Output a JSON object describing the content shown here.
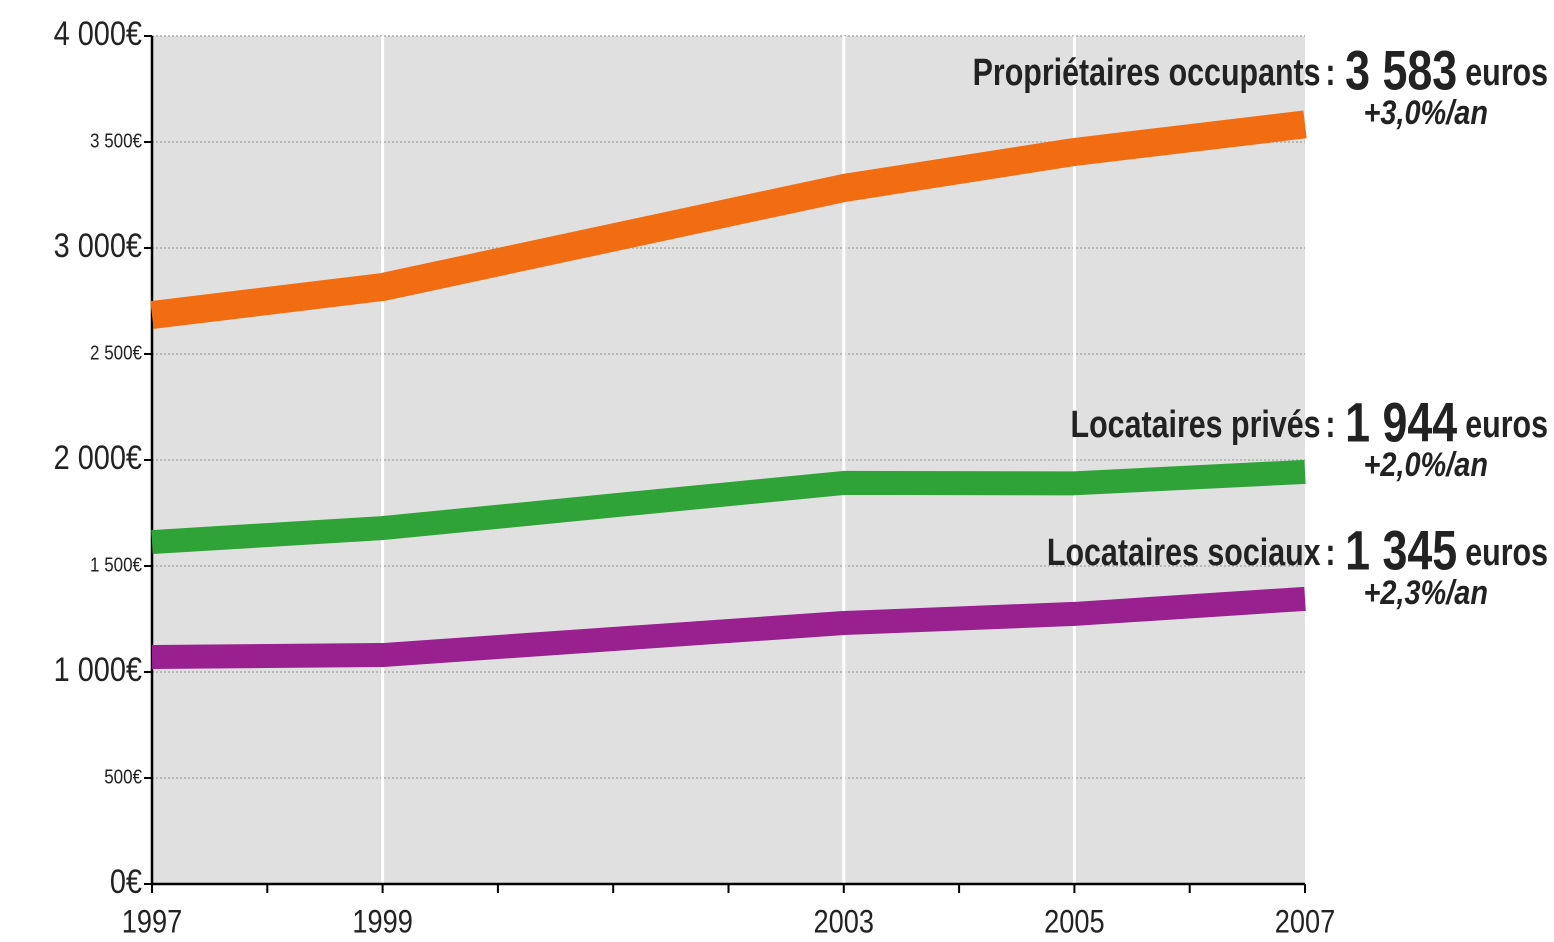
{
  "chart_data": {
    "type": "line",
    "x": [
      1997,
      1999,
      2003,
      2005,
      2007
    ],
    "xlim": [
      1997,
      2007
    ],
    "xticks": [
      1997,
      1999,
      2003,
      2005,
      2007
    ],
    "xminor_ticks": [
      1998,
      2000,
      2001,
      2002,
      2004,
      2006
    ],
    "ylim": [
      0,
      4000
    ],
    "yticks": [
      {
        "value": 0,
        "label": "0€"
      },
      {
        "value": 500,
        "label": "500€"
      },
      {
        "value": 1000,
        "label": "1 000€"
      },
      {
        "value": 1500,
        "label": "1 500€"
      },
      {
        "value": 2000,
        "label": "2 000€"
      },
      {
        "value": 2500,
        "label": "2 500€"
      },
      {
        "value": 3000,
        "label": "3 000€"
      },
      {
        "value": 3500,
        "label": "3 500€"
      },
      {
        "value": 4000,
        "label": "4 000€"
      }
    ],
    "grid": true,
    "name_separator": ":",
    "unit_label": "euros",
    "series": [
      {
        "name": "Propriétaires occupants",
        "color": "#f26d12",
        "values": [
          2684,
          2816,
          3283,
          3453,
          3583
        ],
        "value_labels": [
          null,
          null,
          null,
          null,
          "3 583"
        ],
        "rate": "+3,0%/an"
      },
      {
        "name": "Locataires privés",
        "color": "#2fa337",
        "values": [
          1613,
          1679,
          1892,
          1890,
          1944
        ],
        "value_labels": [
          null,
          null,
          null,
          null,
          "1 944"
        ],
        "rate": "+2,0%/an"
      },
      {
        "name": "Locataires sociaux",
        "color": "#98208f",
        "values": [
          1071,
          1080,
          1231,
          1274,
          1345
        ],
        "value_labels": [
          null,
          null,
          null,
          null,
          "1 345"
        ],
        "rate": "+2,3%/an"
      }
    ]
  }
}
